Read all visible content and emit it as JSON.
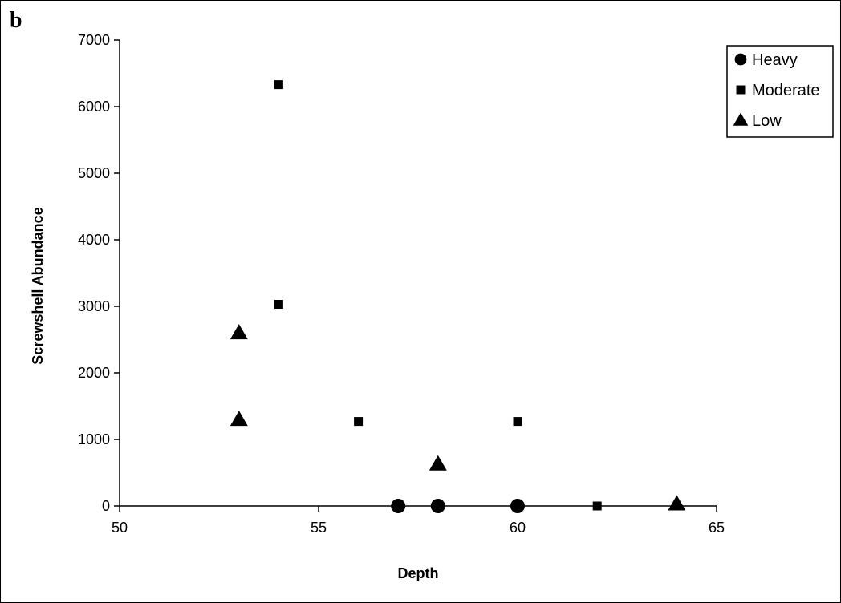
{
  "panel_label": "b",
  "chart_data": {
    "type": "scatter",
    "title": "",
    "xlabel": "Depth",
    "ylabel": "Screwshell Abundance",
    "xlim": [
      50,
      65
    ],
    "ylim": [
      0,
      7000
    ],
    "x_ticks": [
      50,
      55,
      60,
      65
    ],
    "y_ticks": [
      0,
      1000,
      2000,
      3000,
      4000,
      5000,
      6000,
      7000
    ],
    "grid": false,
    "legend_position": "top-right",
    "series": [
      {
        "name": "Heavy",
        "marker": "circle",
        "color": "#000000",
        "points": [
          [
            57,
            0
          ],
          [
            58,
            0
          ],
          [
            60,
            0
          ]
        ]
      },
      {
        "name": "Moderate",
        "marker": "square",
        "color": "#000000",
        "points": [
          [
            54,
            6330
          ],
          [
            54,
            3030
          ],
          [
            56,
            1270
          ],
          [
            60,
            1270
          ],
          [
            62,
            0
          ]
        ]
      },
      {
        "name": "Low",
        "marker": "triangle",
        "color": "#000000",
        "points": [
          [
            53,
            2600
          ],
          [
            53,
            1300
          ],
          [
            58,
            630
          ],
          [
            64,
            30
          ]
        ]
      }
    ]
  }
}
